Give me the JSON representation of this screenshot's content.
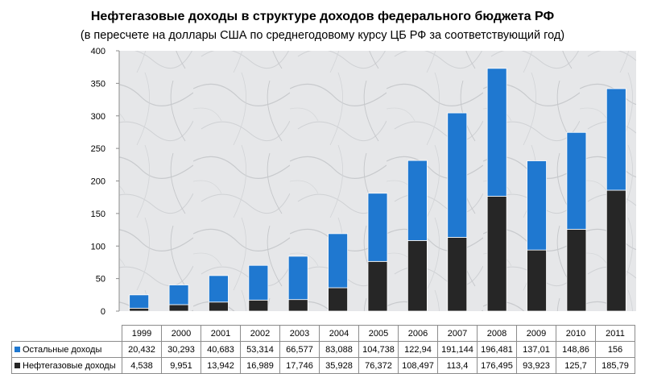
{
  "chart_data": {
    "type": "bar",
    "stacked": true,
    "title": "Нефтегазовые доходы в структуре  доходов федерального бюджета РФ",
    "subtitle": "(в пересчете на доллары США по среднегодовому курсу ЦБ РФ за соответствующий год)",
    "categories": [
      "1999",
      "2000",
      "2001",
      "2002",
      "2003",
      "2004",
      "2005",
      "2006",
      "2007",
      "2008",
      "2009",
      "2010",
      "2011"
    ],
    "series": [
      {
        "name": "Остальные доходы",
        "color": "#1f78d0",
        "values": [
          20.432,
          30.293,
          40.683,
          53.314,
          66.577,
          83.088,
          104.738,
          122.94,
          191.144,
          196.481,
          137.01,
          148.86,
          156
        ],
        "labels": [
          "20,432",
          "30,293",
          "40,683",
          "53,314",
          "66,577",
          "83,088",
          "104,738",
          "122,94",
          "191,144",
          "196,481",
          "137,01",
          "148,86",
          "156"
        ]
      },
      {
        "name": "Нефтегазовые доходы",
        "color": "#262626",
        "values": [
          4.538,
          9.951,
          13.942,
          16.989,
          17.746,
          35.928,
          76.372,
          108.497,
          113.4,
          176.495,
          93.923,
          125.7,
          185.79
        ],
        "labels": [
          "4,538",
          "9,951",
          "13,942",
          "16,989",
          "17,746",
          "35,928",
          "76,372",
          "108,497",
          "113,4",
          "176,495",
          "93,923",
          "125,7",
          "185,79"
        ]
      }
    ],
    "ylim": [
      0,
      400
    ],
    "yticks": [
      "0",
      "50",
      "100",
      "150",
      "200",
      "250",
      "300",
      "350",
      "400"
    ],
    "grid": false,
    "legend": "data-table"
  }
}
